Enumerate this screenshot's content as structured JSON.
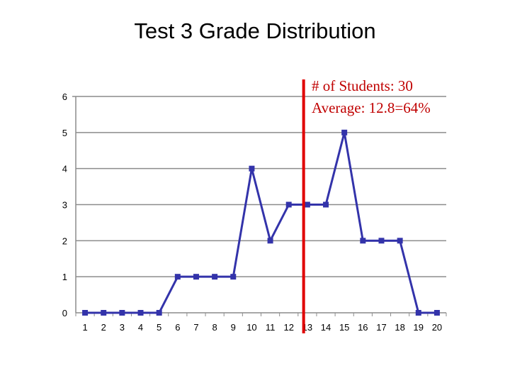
{
  "chart_data": {
    "type": "line",
    "title": "Test 3 Grade Distribution",
    "xlabel": "",
    "ylabel": "",
    "x": [
      1,
      2,
      3,
      4,
      5,
      6,
      7,
      8,
      9,
      10,
      11,
      12,
      13,
      14,
      15,
      16,
      17,
      18,
      19,
      20
    ],
    "series": [
      {
        "values": [
          0,
          0,
          0,
          0,
          0,
          1,
          1,
          1,
          1,
          4,
          2,
          3,
          3,
          3,
          5,
          2,
          2,
          2,
          0,
          0
        ]
      }
    ],
    "ylim": [
      0,
      6
    ],
    "yticks": [
      0,
      1,
      2,
      3,
      4,
      5,
      6
    ],
    "grid": "horizontal",
    "marker_line_x": 12.8,
    "annotation": {
      "line1": "# of Students: 30",
      "line2": "Average: 12.8=64%"
    },
    "colors": {
      "series": "#3333aa",
      "marker_line": "#e00000",
      "annotation_text": "#c00000",
      "grid": "#8c8c8c"
    }
  }
}
